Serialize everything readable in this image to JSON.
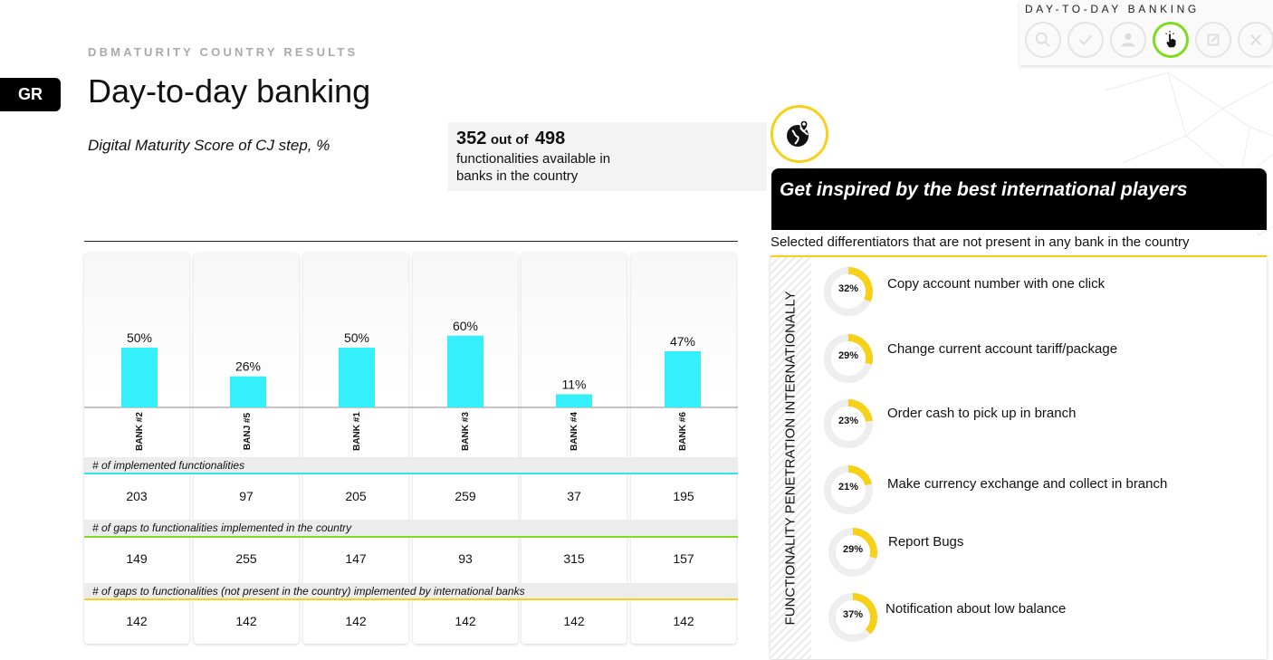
{
  "nav": {
    "title": "DAY-TO-DAY BANKING",
    "buttons": [
      {
        "icon": "search-icon"
      },
      {
        "icon": "check-icon"
      },
      {
        "icon": "user-icon"
      },
      {
        "icon": "pointer-hand-icon",
        "active": true
      },
      {
        "icon": "expand-icon"
      },
      {
        "icon": "close-icon"
      }
    ]
  },
  "header": {
    "subtitle": "DBMATURITY COUNTRY RESULTS",
    "country": "GR",
    "title": "Day-to-day banking",
    "score_label": "Digital Maturity Score of CJ step, %"
  },
  "functionalities": {
    "available": "352",
    "out_of": "out of",
    "total": "498",
    "description": "functionalities available in banks in the country"
  },
  "chart_data": {
    "type": "bar",
    "categories": [
      "BANK #2",
      "BANJ #5",
      "BANK #1",
      "BANK #3",
      "BANK #4",
      "BANK #6"
    ],
    "values": [
      50,
      26,
      50,
      60,
      11,
      47
    ],
    "value_labels": [
      "50%",
      "26%",
      "50%",
      "60%",
      "11%",
      "47%"
    ],
    "color": "#35f0fa"
  },
  "rows": [
    {
      "label": "# of implemented functionalities",
      "color": "#35e2f0",
      "values": [
        "203",
        "97",
        "205",
        "259",
        "37",
        "195"
      ]
    },
    {
      "label": "# of gaps to functionalities implemented in the country",
      "color": "#7ddc1f",
      "values": [
        "149",
        "255",
        "147",
        "93",
        "315",
        "157"
      ]
    },
    {
      "label": "# of gaps to functionalities (not present in the country) implemented by international banks",
      "color": "#f7d117",
      "values": [
        "142",
        "142",
        "142",
        "142",
        "142",
        "142"
      ]
    }
  ],
  "inspire": {
    "title": "Get inspired by the best international players",
    "subtitle": "Selected differentiators that are not present in any bank in the country",
    "axis_label": "FUNCTIONALITY PENETRATION INTERNATIONALLY",
    "accent": "#f7d117",
    "items": [
      {
        "pct_label": "32%",
        "pct": 32,
        "text": "Copy account number with one click"
      },
      {
        "pct_label": "29%",
        "pct": 29,
        "text": "Change current account tariff/package"
      },
      {
        "pct_label": "23%",
        "pct": 23,
        "text": "Order cash to pick up in branch"
      },
      {
        "pct_label": "21%",
        "pct": 21,
        "text": "Make currency exchange and collect in branch"
      },
      {
        "pct_label": "29%",
        "pct": 29,
        "text": "Report Bugs"
      },
      {
        "pct_label": "37%",
        "pct": 37,
        "text": "Notification about low balance"
      }
    ]
  }
}
